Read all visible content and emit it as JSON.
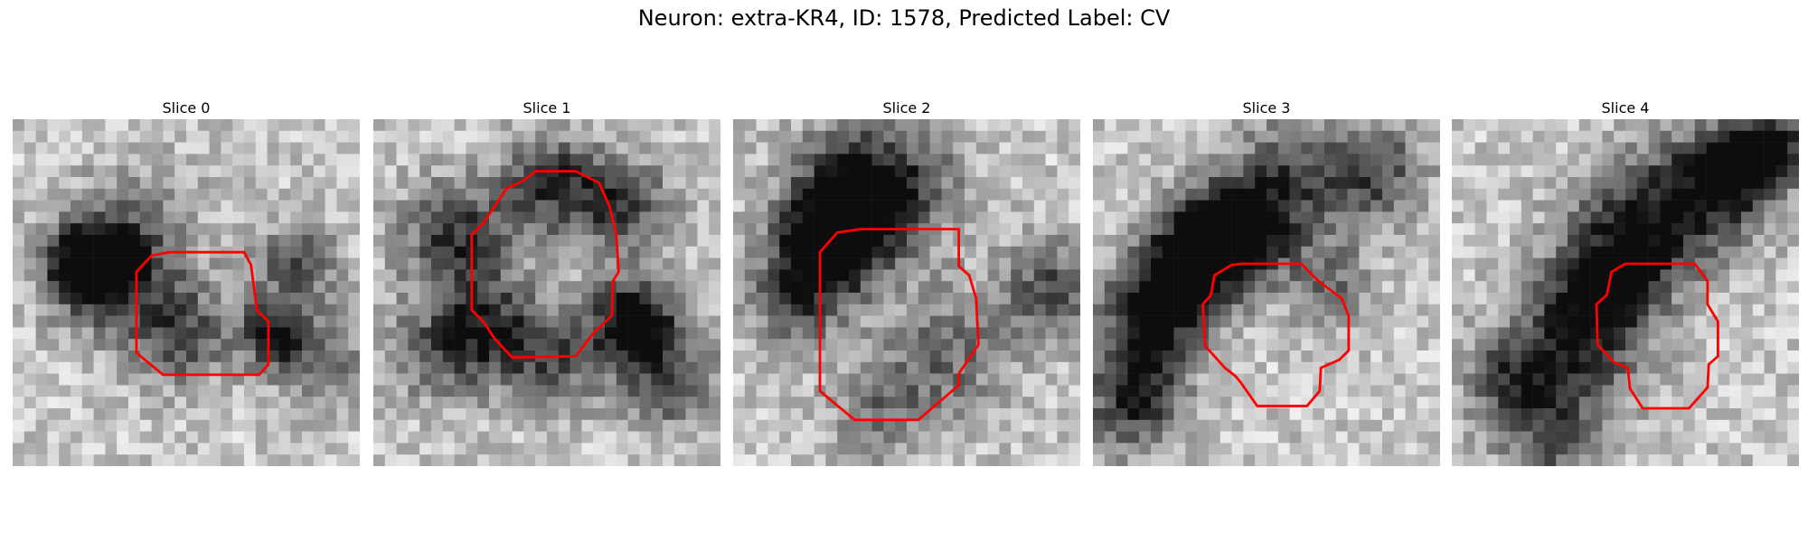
{
  "figure": {
    "title": "Neuron: extra-KR4, ID: 1578, Predicted Label: CV"
  },
  "panels": [
    {
      "title": "Slice 0",
      "contour_color": "#ff0000",
      "contour": [
        [
          17,
          11.5
        ],
        [
          20,
          11.5
        ],
        [
          20.6,
          12.6
        ],
        [
          21.1,
          16.5
        ],
        [
          22.1,
          17.5
        ],
        [
          22.1,
          21.2
        ],
        [
          21.3,
          22.1
        ],
        [
          13,
          22.1
        ],
        [
          10.7,
          20.2
        ],
        [
          10.7,
          13.2
        ],
        [
          12,
          11.8
        ],
        [
          13.5,
          11.5
        ]
      ],
      "dark_spots": [
        [
          6,
          12,
          2.2,
          0.85
        ],
        [
          8,
          13,
          3.5,
          0.55
        ],
        [
          14,
          18,
          3,
          0.5
        ],
        [
          22,
          18,
          2,
          0.6
        ],
        [
          24,
          12,
          2.5,
          0.45
        ],
        [
          10,
          9,
          4,
          0.25
        ],
        [
          26,
          20,
          3,
          0.35
        ]
      ]
    },
    {
      "title": "Slice 1",
      "contour_color": "#ff0000",
      "contour": [
        [
          14,
          4.5
        ],
        [
          17.5,
          4.5
        ],
        [
          19.5,
          5.5
        ],
        [
          20.4,
          7.5
        ],
        [
          21,
          10
        ],
        [
          21.2,
          13.2
        ],
        [
          20.7,
          14
        ],
        [
          20.6,
          17
        ],
        [
          19,
          18.5
        ],
        [
          17.5,
          20.5
        ],
        [
          12,
          20.6
        ],
        [
          10.5,
          19
        ],
        [
          9.5,
          17.5
        ],
        [
          8.5,
          16.5
        ],
        [
          8.5,
          10
        ],
        [
          9.5,
          9
        ],
        [
          10.5,
          7.5
        ],
        [
          11.5,
          6
        ],
        [
          13,
          5.3
        ]
      ],
      "dark_spots": [
        [
          15,
          5,
          3,
          0.55
        ],
        [
          7,
          10,
          3.5,
          0.6
        ],
        [
          22,
          17,
          2.5,
          0.9
        ],
        [
          9,
          18,
          3,
          0.6
        ],
        [
          25,
          22,
          3,
          0.5
        ],
        [
          4,
          20,
          3,
          0.3
        ],
        [
          21,
          7,
          3,
          0.5
        ],
        [
          15,
          20,
          3,
          0.45
        ]
      ]
    },
    {
      "title": "Slice 2",
      "contour_color": "#ff0000",
      "contour": [
        [
          11,
          9.5
        ],
        [
          19.5,
          9.5
        ],
        [
          19.5,
          12.7
        ],
        [
          20.4,
          13.5
        ],
        [
          21,
          15.5
        ],
        [
          21.2,
          19.5
        ],
        [
          19.5,
          22
        ],
        [
          19.5,
          23
        ],
        [
          16,
          26
        ],
        [
          10.5,
          26
        ],
        [
          7.5,
          23.5
        ],
        [
          7.5,
          11.5
        ],
        [
          9,
          9.8
        ]
      ],
      "dark_spots": [
        [
          8,
          10,
          3,
          0.85
        ],
        [
          10,
          6,
          4,
          0.6
        ],
        [
          5,
          15,
          3,
          0.5
        ],
        [
          14,
          5,
          4,
          0.35
        ],
        [
          27,
          14,
          3,
          0.45
        ],
        [
          18,
          20,
          4,
          0.35
        ],
        [
          12,
          25,
          3,
          0.3
        ]
      ]
    },
    {
      "title": "Slice 3",
      "contour_color": "#ff0000",
      "contour": [
        [
          13,
          12.5
        ],
        [
          18,
          12.5
        ],
        [
          19.5,
          14
        ],
        [
          21.5,
          15.5
        ],
        [
          22.1,
          17
        ],
        [
          22.1,
          20
        ],
        [
          21.3,
          20.8
        ],
        [
          19.7,
          21.5
        ],
        [
          19.6,
          23.5
        ],
        [
          18.5,
          24.8
        ],
        [
          14.2,
          24.8
        ],
        [
          12.8,
          22.8
        ],
        [
          12.3,
          22.2
        ],
        [
          11.4,
          21.5
        ],
        [
          9.7,
          19.6
        ],
        [
          9.5,
          16
        ],
        [
          10.2,
          15.2
        ],
        [
          10.5,
          13.5
        ],
        [
          12,
          12.6
        ]
      ],
      "dark_spots": [
        [
          12,
          9,
          3,
          0.85
        ],
        [
          9,
          11,
          3,
          0.7
        ],
        [
          6,
          14,
          3,
          0.6
        ],
        [
          4,
          18,
          3,
          0.55
        ],
        [
          17,
          5,
          4,
          0.45
        ],
        [
          3,
          24,
          3,
          0.6
        ],
        [
          24,
          4,
          3,
          0.45
        ],
        [
          20,
          14,
          2.5,
          0.35
        ]
      ]
    },
    {
      "title": "Slice 4",
      "contour_color": "#ff0000",
      "contour": [
        [
          15,
          12.5
        ],
        [
          21,
          12.5
        ],
        [
          22.1,
          14
        ],
        [
          22.1,
          16
        ],
        [
          23,
          17.5
        ],
        [
          23,
          20.5
        ],
        [
          22.2,
          21.2
        ],
        [
          22.1,
          23.2
        ],
        [
          20.5,
          25
        ],
        [
          16.5,
          25
        ],
        [
          15.4,
          23.3
        ],
        [
          15.2,
          21.5
        ],
        [
          14,
          21
        ],
        [
          12.6,
          19.5
        ],
        [
          12.5,
          16
        ],
        [
          13.4,
          15.2
        ],
        [
          13.8,
          13.2
        ]
      ],
      "dark_spots": [
        [
          15,
          10,
          4,
          0.65
        ],
        [
          12,
          15,
          3,
          0.55
        ],
        [
          10,
          20,
          4,
          0.5
        ],
        [
          27,
          2,
          2,
          0.8
        ],
        [
          24,
          4,
          3,
          0.6
        ],
        [
          5,
          22,
          3,
          0.45
        ],
        [
          8,
          28,
          3,
          0.35
        ],
        [
          20,
          6,
          4,
          0.4
        ]
      ]
    }
  ]
}
